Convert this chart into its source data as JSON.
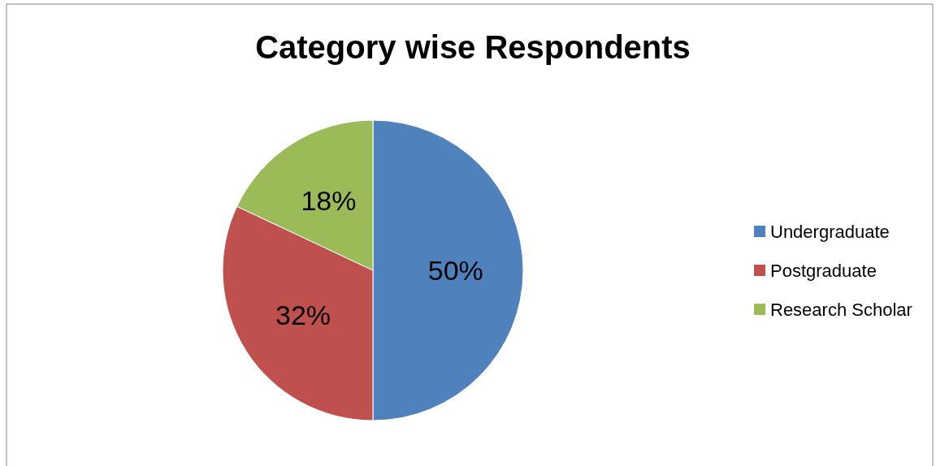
{
  "chart_data": {
    "type": "pie",
    "title": "Category wise Respondents",
    "categories": [
      "Undergraduate",
      "Postgraduate",
      "Research Scholar"
    ],
    "values": [
      50,
      32,
      18
    ],
    "colors": [
      "#4f81bd",
      "#c0504d",
      "#9bbb59"
    ],
    "value_labels": [
      "50%",
      "32%",
      "18%"
    ],
    "legend": "right"
  }
}
